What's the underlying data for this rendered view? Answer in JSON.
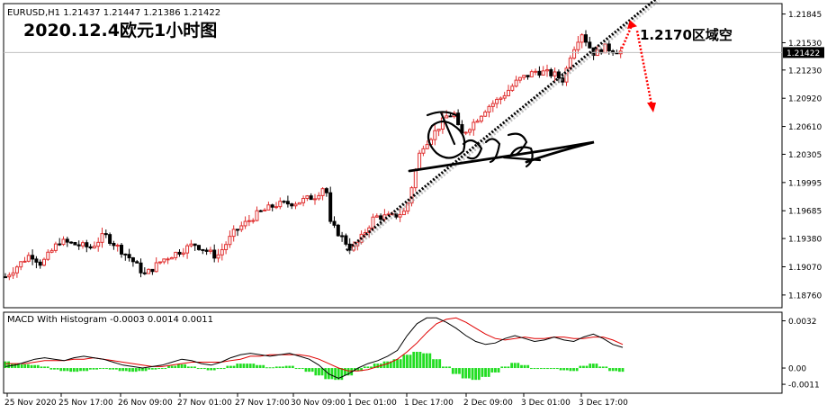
{
  "window": {
    "symbol_header": "EURUSD,H1  1.21437 1.21447 1.21386 1.21422"
  },
  "annotation": {
    "title": "2020.12.4欧元1小时图",
    "zone_label": "1.2170区域空"
  },
  "colors": {
    "up_candle": "#e03030",
    "down_candle": "#000000",
    "macd_line": "#000000",
    "signal_line": "#e00000",
    "histogram": "#22dd22",
    "trendline": "#000000",
    "arrow": "#ff0000"
  },
  "chart_data": [
    {
      "type": "candlestick",
      "symbol": "EURUSD",
      "timeframe": "H1",
      "ylim": [
        1.1865,
        1.219
      ],
      "current_price": "1.21422",
      "y_ticks": [
        "1.21845",
        "1.21530",
        "1.21230",
        "1.20920",
        "1.20610",
        "1.20305",
        "1.19995",
        "1.19685",
        "1.19380",
        "1.19070",
        "1.18760"
      ],
      "x_ticks": [
        "25 Nov 2020",
        "25 Nov 17:00",
        "26 Nov 09:00",
        "27 Nov 01:00",
        "27 Nov 17:00",
        "30 Nov 09:00",
        "1 Dec 01:00",
        "1 Dec 17:00",
        "2 Dec 09:00",
        "3 Dec 01:00",
        "3 Dec 17:00"
      ],
      "trendline": {
        "from_price": 1.1925,
        "to_price": 1.219
      },
      "target_price": 1.217
    },
    {
      "type": "line",
      "title": "MACD With Histogram -0.0003 0.0014 0.0011",
      "ylim": [
        -0.0014,
        0.0036
      ],
      "y_ticks": [
        "0.0032",
        "0.00",
        "-0.0011"
      ],
      "series": [
        {
          "name": "MACD",
          "values": [
            0.0001,
            0.0002,
            0.0004,
            0.0006,
            0.0007,
            0.0006,
            0.0005,
            0.0007,
            0.0008,
            0.0007,
            0.0006,
            0.0004,
            0.0002,
            0.0001,
            0.0,
            0.0001,
            0.0002,
            0.0004,
            0.0006,
            0.0005,
            0.0003,
            0.0002,
            0.0004,
            0.0007,
            0.0009,
            0.001,
            0.0009,
            0.0008,
            0.0009,
            0.001,
            0.0008,
            0.0006,
            0.0002,
            -0.0004,
            -0.0007,
            -0.0004,
            0.0,
            0.0003,
            0.0005,
            0.0008,
            0.0012,
            0.0022,
            0.003,
            0.0034,
            0.0034,
            0.0031,
            0.0027,
            0.0022,
            0.0018,
            0.0016,
            0.0017,
            0.002,
            0.0022,
            0.002,
            0.0018,
            0.0019,
            0.0021,
            0.0019,
            0.0018,
            0.0021,
            0.0023,
            0.002,
            0.0016,
            0.0014
          ]
        },
        {
          "name": "Signal",
          "values": [
            0.0003,
            0.0003,
            0.0003,
            0.0004,
            0.0005,
            0.0005,
            0.0005,
            0.0006,
            0.0006,
            0.0007,
            0.0006,
            0.0005,
            0.0004,
            0.0003,
            0.0002,
            0.0001,
            0.0001,
            0.0002,
            0.0003,
            0.0004,
            0.0004,
            0.0004,
            0.0004,
            0.0005,
            0.0006,
            0.0008,
            0.0008,
            0.0009,
            0.0009,
            0.0009,
            0.0009,
            0.0008,
            0.0006,
            0.0003,
            0.0,
            -0.0002,
            -0.0002,
            -0.0001,
            0.0001,
            0.0003,
            0.0006,
            0.0011,
            0.0017,
            0.0024,
            0.003,
            0.0033,
            0.0034,
            0.0031,
            0.0027,
            0.0023,
            0.002,
            0.0019,
            0.002,
            0.0021,
            0.002,
            0.002,
            0.0021,
            0.0021,
            0.002,
            0.002,
            0.0021,
            0.0021,
            0.0019,
            0.0016
          ]
        },
        {
          "name": "Histogram",
          "values": [
            0.00045,
            0.0003,
            0.00025,
            0.0002,
            0.0001,
            -0.0001,
            -0.0002,
            -0.00025,
            -0.0002,
            -0.0001,
            -5e-05,
            -0.0001,
            -0.0002,
            -0.00025,
            -0.0002,
            -0.0001,
            0.0,
            0.00015,
            0.00025,
            0.0001,
            -5e-05,
            -0.00015,
            0.0,
            0.00015,
            0.0003,
            0.0003,
            0.0002,
            5e-05,
            0.0001,
            0.00015,
            -5e-05,
            -0.00025,
            -0.0005,
            -0.00075,
            -0.0008,
            -0.0005,
            -0.0002,
            0.0001,
            0.0003,
            0.00045,
            0.0006,
            0.0009,
            0.0011,
            0.001,
            0.0006,
            0.0001,
            -0.0004,
            -0.0007,
            -0.0008,
            -0.0006,
            -0.0003,
            0.0001,
            0.00035,
            0.0002,
            0.0,
            -5e-05,
            0.0,
            -0.00015,
            -0.0002,
            0.00015,
            0.0003,
            0.0001,
            -0.0002,
            -0.00025
          ]
        }
      ]
    }
  ]
}
